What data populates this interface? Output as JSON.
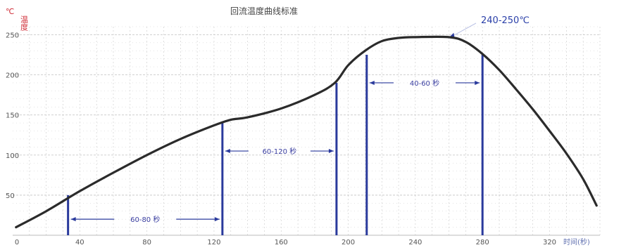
{
  "chart_data": {
    "type": "line",
    "title": "回流温度曲线标准",
    "y_unit_symbol": "℃",
    "y_label": "温度",
    "x_label": "时间(秒)",
    "xlim": [
      0,
      350
    ],
    "ylim": [
      0,
      260
    ],
    "x_ticks": [
      0,
      40,
      80,
      120,
      160,
      200,
      240,
      280,
      320
    ],
    "y_ticks": [
      50,
      100,
      150,
      200,
      250
    ],
    "x_tick_labels": [
      "0",
      "40",
      "80",
      "120",
      "160",
      "200",
      "240",
      "280",
      "320"
    ],
    "y_tick_labels": [
      "50",
      "100",
      "150",
      "200",
      "250"
    ],
    "grid": true,
    "colors": {
      "curve": "#2b2b2b",
      "marker": "#2a3a9c",
      "grid": "#c9c9c9",
      "unit": "#d0303a"
    },
    "series": [
      {
        "x": [
          2,
          20,
          40,
          60,
          80,
          100,
          120,
          130,
          140,
          160,
          180,
          192,
          200,
          210,
          220,
          230,
          240,
          260,
          270,
          280,
          290,
          300,
          310,
          320,
          330,
          340,
          348
        ],
        "y": [
          10,
          30,
          55,
          78,
          100,
          120,
          137,
          144,
          147,
          158,
          175,
          190,
          212,
          230,
          242,
          246,
          247,
          247,
          241,
          226,
          206,
          182,
          157,
          130,
          102,
          70,
          37
        ]
      }
    ],
    "markers": [
      {
        "x": 33,
        "y": 50
      },
      {
        "x": 125,
        "y": 140
      },
      {
        "x": 193,
        "y": 190
      },
      {
        "x": 211,
        "y": 225
      },
      {
        "x": 280,
        "y": 225
      }
    ],
    "annotations": [
      {
        "text": "60-80 秒",
        "x_from": 33,
        "x_to": 125,
        "y": 20
      },
      {
        "text": "60-120 秒",
        "x_from": 125,
        "x_to": 193,
        "y": 105
      },
      {
        "text": "40-60 秒",
        "x_from": 211,
        "x_to": 280,
        "y": 190
      }
    ],
    "peak_label": {
      "text": "240-250℃",
      "x": 262,
      "y": 248
    }
  }
}
